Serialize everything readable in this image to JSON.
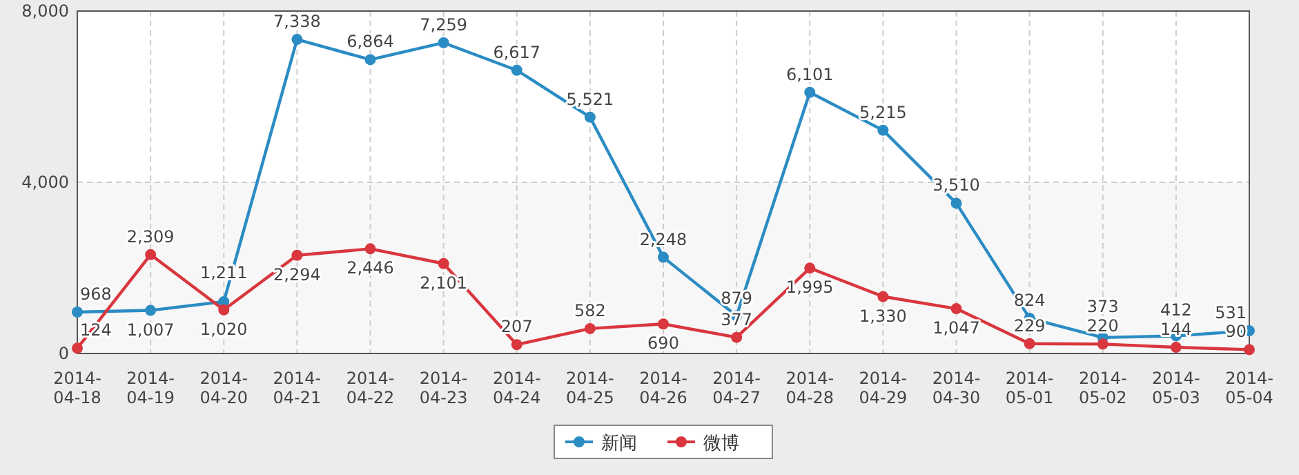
{
  "chart_data": {
    "type": "line",
    "categories": [
      "2014-04-18",
      "2014-04-19",
      "2014-04-20",
      "2014-04-21",
      "2014-04-22",
      "2014-04-23",
      "2014-04-24",
      "2014-04-25",
      "2014-04-26",
      "2014-04-27",
      "2014-04-28",
      "2014-04-29",
      "2014-04-30",
      "2014-05-01",
      "2014-05-02",
      "2014-05-03",
      "2014-05-04"
    ],
    "series": [
      {
        "name": "新闻",
        "color": "#2b8cc4",
        "values": [
          968,
          1007,
          1211,
          7338,
          6864,
          7259,
          6617,
          5521,
          2248,
          879,
          6101,
          5215,
          3510,
          824,
          373,
          412,
          531
        ],
        "value_labels": [
          "968",
          "1,007",
          "1,211",
          "7,338",
          "6,864",
          "7,259",
          "6,617",
          "5,521",
          "2,248",
          "879",
          "6,101",
          "5,215",
          "3,510",
          "824",
          "373",
          "412",
          "531"
        ]
      },
      {
        "name": "微博",
        "color": "#d9363e",
        "values": [
          124,
          2309,
          1020,
          2294,
          2446,
          2101,
          207,
          582,
          690,
          377,
          1995,
          1330,
          1047,
          229,
          220,
          144,
          90
        ],
        "value_labels": [
          "124",
          "2,309",
          "1,020",
          "2,294",
          "2,446",
          "2,101",
          "207",
          "582",
          "690",
          "377",
          "1,995",
          "1,330",
          "1,047",
          "229",
          "220",
          "144",
          "90"
        ]
      }
    ],
    "ylim": [
      0,
      8000
    ],
    "yticks": [
      {
        "value": 0,
        "label": "0"
      },
      {
        "value": 4000,
        "label": "4,000"
      },
      {
        "value": 8000,
        "label": "8,000"
      }
    ],
    "bands": [
      {
        "axis": "y",
        "from": 0,
        "to": 4000,
        "color": "#f7f7f7"
      }
    ],
    "grid": true,
    "legend": "bottom",
    "marker": "circle",
    "line_style": "solid"
  }
}
